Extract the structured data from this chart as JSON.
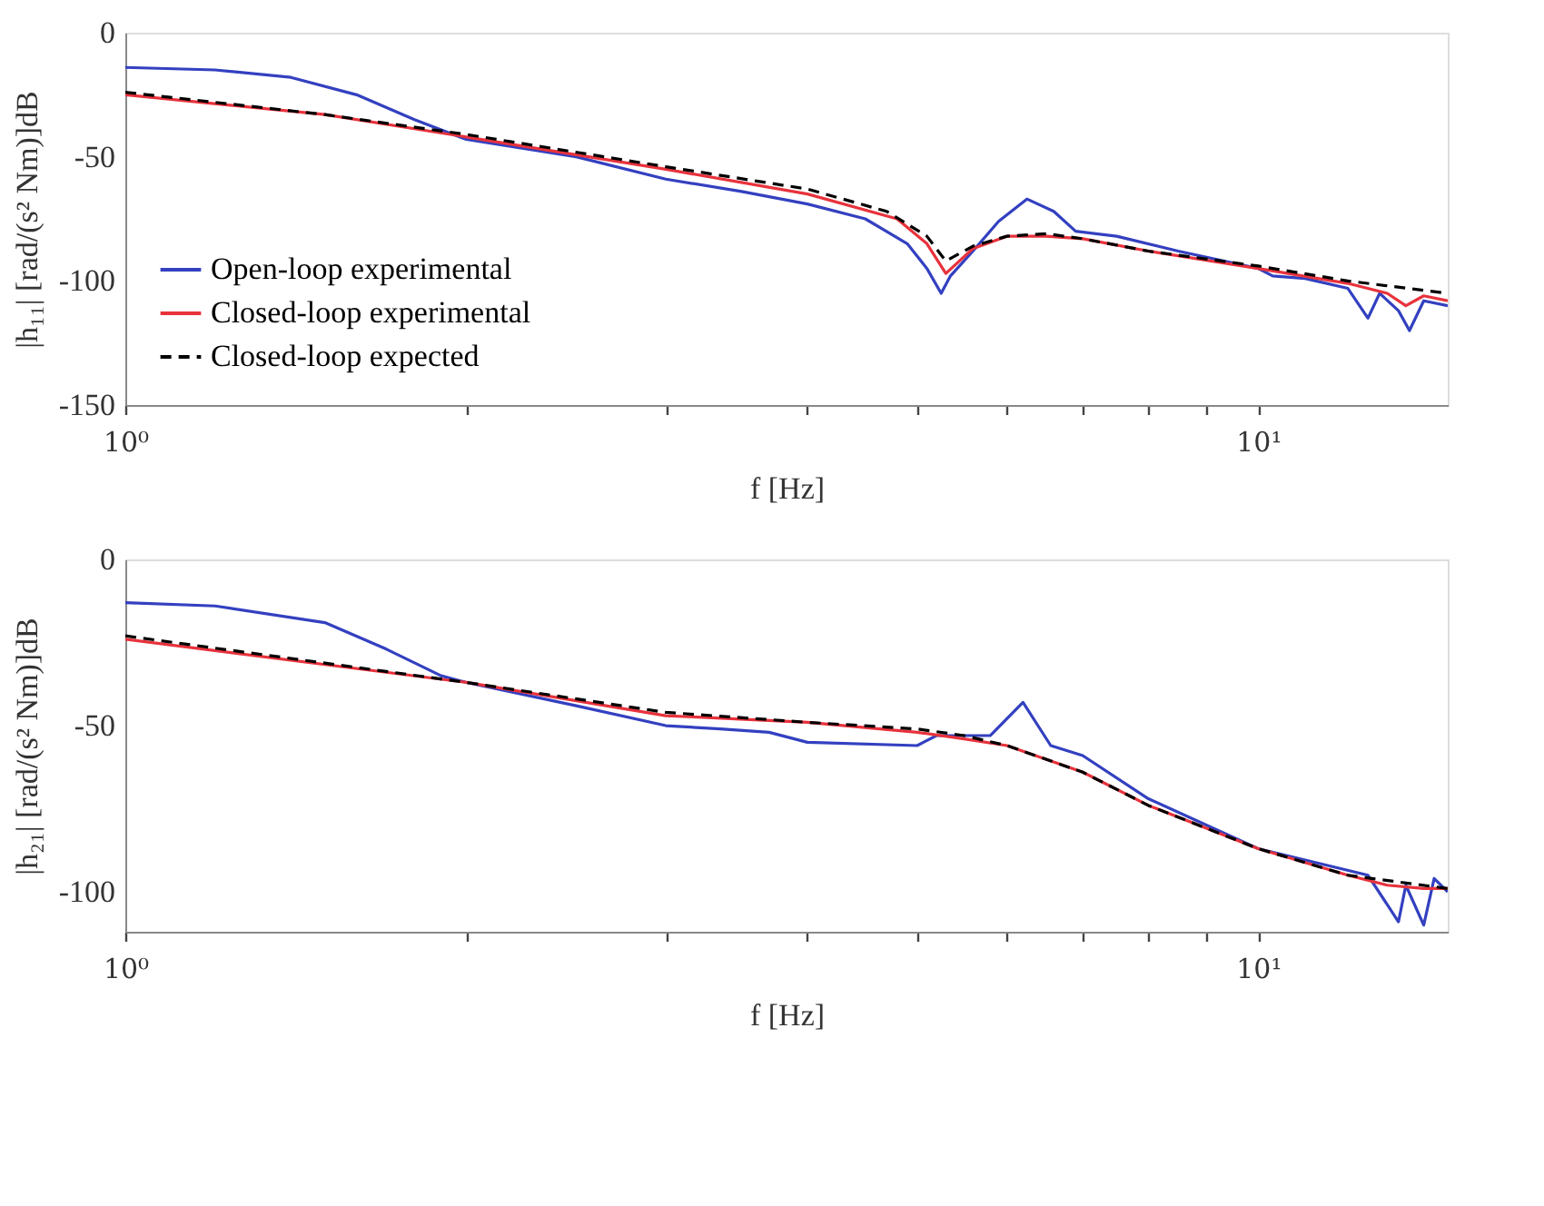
{
  "chart_data": [
    {
      "type": "line",
      "xlabel": "f [Hz]",
      "ylabel": "|h₁₁| [rad/(s² Nm)]dB",
      "log": "x",
      "grid": false,
      "legend": "bottom left",
      "xlim": [
        1,
        14.7
      ],
      "ylim": [
        -150,
        0
      ],
      "xticks": [
        {
          "value": 1,
          "label": "10⁰"
        },
        {
          "value": 2,
          "label": null
        },
        {
          "value": 3,
          "label": null
        },
        {
          "value": 4,
          "label": null
        },
        {
          "value": 5,
          "label": null
        },
        {
          "value": 6,
          "label": null
        },
        {
          "value": 7,
          "label": null
        },
        {
          "value": 8,
          "label": null
        },
        {
          "value": 9,
          "label": null
        },
        {
          "value": 10,
          "label": "10¹"
        }
      ],
      "yticks": [
        -150,
        -100,
        -50,
        0
      ],
      "series": [
        {
          "name": "Open-loop experimental",
          "color": "#3340c0",
          "line_style": "solid",
          "x": [
            1.0,
            1.2,
            1.4,
            1.6,
            1.8,
            2.0,
            2.5,
            3.0,
            3.5,
            4.0,
            4.5,
            4.9,
            5.1,
            5.25,
            5.35,
            5.6,
            5.9,
            6.25,
            6.6,
            6.9,
            7.5,
            8.5,
            10,
            10.3,
            11,
            12,
            12.5,
            12.8,
            13.3,
            13.6,
            14,
            14.7
          ],
          "values": [
            -14,
            -15,
            -18,
            -25,
            -35,
            -43,
            -50,
            -59,
            -64,
            -69,
            -75,
            -85,
            -95,
            -105,
            -98,
            -88,
            -76,
            -67,
            -72,
            -80,
            -82,
            -88,
            -95,
            -98,
            -99,
            -103,
            -115,
            -105,
            -112,
            -120,
            -108,
            -110
          ]
        },
        {
          "name": "Closed-loop experimental",
          "color": "#e8323c",
          "line_style": "solid",
          "x": [
            1,
            1.5,
            2,
            3,
            4,
            4.8,
            5.1,
            5.3,
            5.6,
            6,
            6.5,
            7,
            8,
            10,
            12,
            13,
            13.5,
            14,
            14.7
          ],
          "values": [
            -25,
            -33,
            -42,
            -55,
            -65,
            -75,
            -85,
            -97,
            -87,
            -82,
            -82,
            -83,
            -88,
            -95,
            -101,
            -105,
            -110,
            -106,
            -108
          ]
        },
        {
          "name": "Closed-loop expected",
          "color": "#000000",
          "line_style": "dashed",
          "x": [
            1,
            1.5,
            2,
            3,
            4,
            4.7,
            5.1,
            5.3,
            5.6,
            6,
            6.5,
            7,
            8,
            10,
            12,
            14.7
          ],
          "values": [
            -24,
            -33,
            -41,
            -54,
            -63,
            -72,
            -82,
            -92,
            -86,
            -82,
            -81,
            -83,
            -88,
            -94,
            -100,
            -105
          ]
        }
      ]
    },
    {
      "type": "line",
      "xlabel": "f [Hz]",
      "ylabel": "|h₂₁| [rad/(s² Nm)]dB",
      "log": "x",
      "grid": false,
      "legend": false,
      "xlim": [
        1,
        14.7
      ],
      "ylim": [
        -112,
        0
      ],
      "xticks": [
        {
          "value": 1,
          "label": "10⁰"
        },
        {
          "value": 2,
          "label": null
        },
        {
          "value": 3,
          "label": null
        },
        {
          "value": 4,
          "label": null
        },
        {
          "value": 5,
          "label": null
        },
        {
          "value": 6,
          "label": null
        },
        {
          "value": 7,
          "label": null
        },
        {
          "value": 8,
          "label": null
        },
        {
          "value": 9,
          "label": null
        },
        {
          "value": 10,
          "label": "10¹"
        }
      ],
      "yticks": [
        -100,
        -50,
        0
      ],
      "series": [
        {
          "color": "#3340c0",
          "line_style": "solid",
          "x": [
            1.0,
            1.2,
            1.5,
            1.7,
            1.9,
            2.0,
            2.5,
            3.0,
            3.35,
            3.7,
            4.0,
            5.0,
            5.2,
            5.8,
            6.2,
            6.56,
            7.0,
            8,
            10,
            12.5,
            13.3,
            13.5,
            14,
            14.3,
            14.7
          ],
          "values": [
            -13,
            -14,
            -19,
            -27,
            -35,
            -37,
            -44,
            -50,
            -51,
            -52,
            -55,
            -56,
            -53,
            -53,
            -43,
            -56,
            -59,
            -72,
            -87,
            -95,
            -109,
            -98,
            -110,
            -96,
            -100
          ]
        },
        {
          "color": "#e8323c",
          "line_style": "solid",
          "x": [
            1,
            2,
            3,
            4,
            5,
            5.5,
            6,
            7,
            8,
            10,
            12,
            13,
            14,
            14.7
          ],
          "values": [
            -24,
            -37,
            -47,
            -49,
            -52,
            -54,
            -56,
            -64,
            -74,
            -87,
            -95,
            -98,
            -99,
            -99
          ]
        },
        {
          "color": "#000000",
          "line_style": "dashed",
          "x": [
            1,
            2,
            3,
            4,
            5,
            5.5,
            6,
            7,
            8,
            10,
            12,
            14.7
          ],
          "values": [
            -23,
            -37,
            -46,
            -49,
            -51,
            -53,
            -56,
            -64,
            -74,
            -87,
            -95,
            -99
          ]
        }
      ]
    }
  ]
}
